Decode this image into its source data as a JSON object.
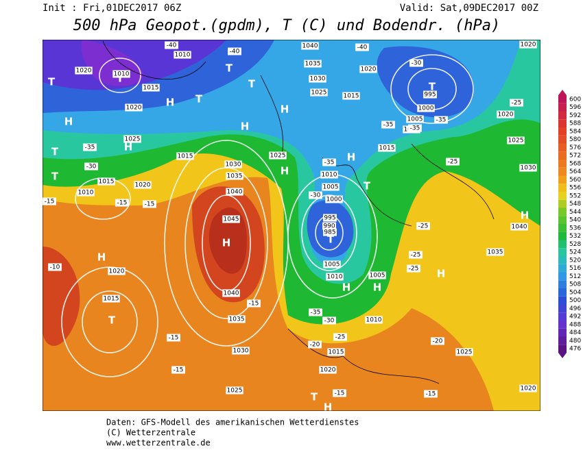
{
  "header": {
    "init": "Init : Fri,01DEC2017 06Z",
    "valid": "Valid: Sat,09DEC2017 00Z",
    "title": "500 hPa Geopot.(gpdm), T (C) und Bodendr. (hPa)"
  },
  "colorbar": {
    "labels": [
      600,
      596,
      592,
      588,
      584,
      580,
      576,
      572,
      568,
      564,
      560,
      556,
      552,
      548,
      544,
      540,
      536,
      532,
      528,
      524,
      520,
      516,
      512,
      508,
      504,
      500,
      496,
      492,
      488,
      484,
      480,
      476
    ]
  },
  "map": {
    "labels": [
      "T",
      "H",
      "T",
      "T",
      "H",
      "T",
      "H",
      "T",
      "T",
      "H",
      "H",
      "T",
      "T",
      "H",
      "T",
      "H",
      "H",
      "H",
      "T",
      "H",
      "H",
      "H",
      "H",
      "T",
      "H",
      "T",
      "1020",
      "1010",
      "1015",
      "1020",
      "1025",
      "1015",
      "1030",
      "1035",
      "1040",
      "1045",
      "1040",
      "1035",
      "1030",
      "1025",
      "1020",
      "1015",
      "1010",
      "1015",
      "1020",
      "1040",
      "1035",
      "1030",
      "1025",
      "1015",
      "1020",
      "995",
      "1000",
      "1005",
      "1010",
      "1015",
      "1020",
      "1025",
      "1030",
      "1035",
      "1040",
      "1020",
      "1010",
      "1005",
      "1000",
      "995",
      "990",
      "985",
      "1005",
      "1010",
      "1005",
      "1010",
      "1015",
      "1020",
      "1025",
      "1020",
      "1025",
      "1010",
      "-40",
      "-40",
      "-40",
      "-30",
      "-35",
      "-35",
      "-35",
      "-25",
      "-25",
      "-25",
      "-25",
      "-25",
      "-35",
      "-30",
      "-15",
      "-15",
      "-15",
      "-10",
      "-15",
      "-15",
      "-15",
      "-20",
      "-25",
      "-30",
      "-35",
      "-20",
      "-15",
      "-15",
      "-30",
      "-35"
    ]
  },
  "footer": {
    "lines": [
      "Daten: GFS-Modell des amerikanischen Wetterdienstes",
      "(C) Wetterzentrale",
      "www.wetterzentrale.de"
    ]
  }
}
